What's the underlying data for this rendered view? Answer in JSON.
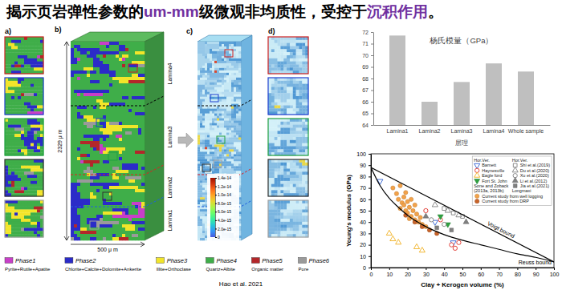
{
  "title": {
    "parts": [
      {
        "text": "揭示页岩弹性参数的",
        "color": "#000000"
      },
      {
        "text": "um-mm",
        "color": "#7030a0"
      },
      {
        "text": "级微观非均质性，受控于",
        "color": "#000000"
      },
      {
        "text": "沉积作用",
        "color": "#7030a0"
      },
      {
        "text": "。",
        "color": "#000000"
      }
    ]
  },
  "figure": {
    "panel_labels": [
      "a)",
      "b)",
      "c)",
      "d)"
    ],
    "laminae": [
      "Lamina4",
      "Lamina3",
      "Lamina2",
      "Lamina1"
    ],
    "height_label": "2329 μ m",
    "width_label": "500 μ m",
    "colorbar": {
      "range": [
        0,
        1.4e-14
      ],
      "ticks": [
        {
          "value": 1.4e-14,
          "label": "1.4e-14"
        },
        {
          "value": 1.2e-14,
          "label": "1.2e-14"
        },
        {
          "value": 1e-14,
          "label": "1.0e-14"
        },
        {
          "value": 8e-15,
          "label": "8.0e-15"
        },
        {
          "value": 6e-15,
          "label": "6.0e-15"
        },
        {
          "value": 4e-15,
          "label": "4.0e-15"
        },
        {
          "value": 2e-15,
          "label": "2.0e-15"
        },
        0
      ]
    },
    "phases": [
      {
        "name": "Phase1",
        "color": "#c83fc8",
        "minerals": "Pyrite+Rutile+Apatite"
      },
      {
        "name": "Phase2",
        "color": "#2b2bc8",
        "minerals": "Chlorite+Calcite+Dolomite+Ankerite"
      },
      {
        "name": "Phase3",
        "color": "#f2e52a",
        "minerals": "Illite+Orthoclase"
      },
      {
        "name": "Phase4",
        "color": "#3fae49",
        "minerals": "Quartz+Albite"
      },
      {
        "name": "Phase5",
        "color": "#b3272a",
        "minerals": "Organic matter"
      },
      {
        "name": "Phase6",
        "color": "#9a9a9a",
        "minerals": "Pore"
      }
    ],
    "source": "Hao et al. 2021"
  },
  "chart_data": [
    {
      "type": "bar",
      "title": "杨氏模量（GPa）",
      "x_label": "层理",
      "categories": [
        "Lamina1",
        "Lamina2",
        "Lamina3",
        "Lamina4",
        "Whole sample"
      ],
      "values": [
        71.7,
        66.0,
        67.7,
        69.3,
        68.6
      ],
      "color": "#bfbfbf",
      "ylim": [
        64,
        72
      ],
      "yticks": [
        64,
        65,
        66,
        67,
        68,
        69,
        70,
        71,
        72
      ]
    },
    {
      "type": "scatter",
      "x_label": "Clay + Kerogen volume (%)",
      "y_label": "Young's modulus (GPa)",
      "xlim": [
        0,
        100
      ],
      "ylim": [
        0,
        100
      ],
      "xticks": [
        0,
        10,
        20,
        30,
        40,
        50,
        60,
        70,
        80,
        90,
        100
      ],
      "yticks": [
        0,
        10,
        20,
        30,
        40,
        50,
        60,
        70,
        80,
        90,
        100
      ],
      "legend": "upper right",
      "annotations": [
        "Hor.Ver.",
        "Hor.Ver.",
        "Sone and Zoback (2013a, 2013b)",
        "Longmaxi"
      ],
      "series": [
        {
          "name": "Barnett",
          "color": "#2f5fd0",
          "marker": "triangle-down-open",
          "x": [
            5,
            35,
            45
          ],
          "values": [
            76,
            40,
            22
          ]
        },
        {
          "name": "Haynesville",
          "color": "#e03028",
          "marker": "circle-open",
          "x": [
            30,
            38,
            44,
            46,
            48
          ],
          "values": [
            50,
            42,
            20,
            17,
            22
          ]
        },
        {
          "name": "Eagle ford",
          "color": "#f0b020",
          "marker": "triangle-open",
          "x": [
            10,
            12,
            15,
            25,
            28
          ],
          "values": [
            30,
            25,
            22,
            18,
            15
          ]
        },
        {
          "name": "Fort St. John",
          "color": "#30a040",
          "marker": "triangle-down",
          "x": [
            38,
            42
          ],
          "values": [
            45,
            38
          ]
        },
        {
          "name": "Shi et al.(2019)",
          "color": "#808080",
          "marker": "square-open",
          "x": [
            40,
            45,
            50
          ],
          "values": [
            52,
            48,
            45
          ]
        },
        {
          "name": "Du et al.(2020)",
          "color": "#808080",
          "marker": "triangle-open",
          "x": [
            35,
            42,
            48
          ],
          "values": [
            55,
            50,
            46
          ]
        },
        {
          "name": "Xu et al.(2020)",
          "color": "#808080",
          "marker": "circle-open",
          "x": [
            33,
            40
          ],
          "values": [
            42,
            38
          ]
        },
        {
          "name": "Li et al.(2012)",
          "color": "#808080",
          "marker": "triangle",
          "x": [
            30,
            52
          ],
          "values": [
            45,
            40
          ]
        },
        {
          "name": "Jia et al.(2021)",
          "color": "#808080",
          "marker": "square",
          "x": [
            36,
            44
          ],
          "values": [
            35,
            33
          ]
        },
        {
          "name": "Current study from well logging",
          "color": "#f2a24a",
          "marker": "circle",
          "x": [
            12,
            14,
            15,
            16,
            16,
            17,
            18,
            18,
            19,
            19,
            20,
            20,
            21,
            21,
            22,
            22,
            23,
            24,
            24,
            25,
            26,
            27,
            28,
            30
          ],
          "values": [
            70,
            65,
            60,
            72,
            52,
            57,
            62,
            55,
            50,
            66,
            58,
            48,
            53,
            43,
            45,
            60,
            50,
            42,
            55,
            47,
            40,
            44,
            38,
            36
          ]
        },
        {
          "name": "Current study from DRP",
          "color": "#c8642a",
          "marker": "circle",
          "x": [
            19,
            24,
            28,
            32,
            36
          ],
          "values": [
            46,
            40,
            36,
            33,
            30
          ]
        },
        {
          "name": "Voigt bound",
          "type": "line",
          "color": "#000000",
          "x": [
            0,
            100
          ],
          "values": [
            88,
            5
          ]
        },
        {
          "name": "Reuss bound",
          "type": "line",
          "color": "#000000",
          "x": [
            0,
            5,
            10,
            15,
            20,
            30,
            40,
            50,
            60,
            70,
            80,
            90,
            100
          ],
          "values": [
            88,
            72,
            61,
            53,
            46,
            36,
            29,
            24,
            20,
            16,
            12,
            9,
            5
          ]
        }
      ]
    }
  ]
}
